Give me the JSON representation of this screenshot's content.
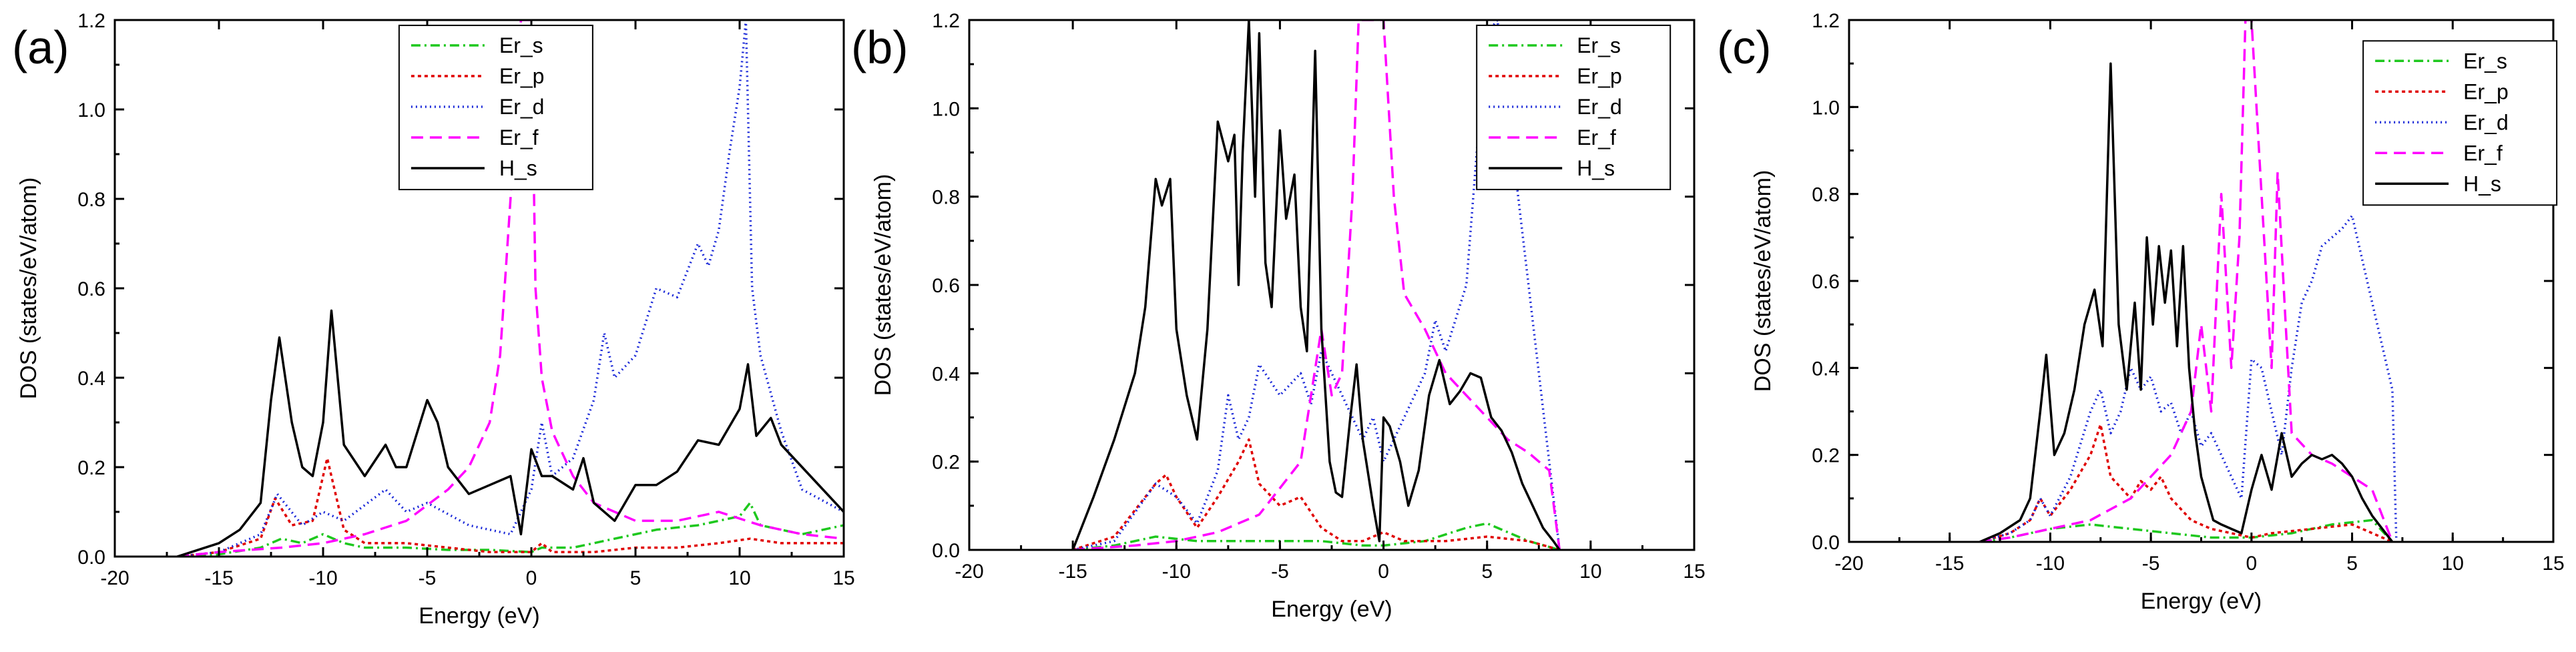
{
  "series_styles": [
    {
      "name": "Er_s",
      "color": "#1ec81e",
      "dash": "14,6,3,6"
    },
    {
      "name": "Er_p",
      "color": "#e00000",
      "dash": "5,5"
    },
    {
      "name": "Er_d",
      "color": "#1a28d8",
      "dash": "2,5"
    },
    {
      "name": "Er_f",
      "color": "#ff00ff",
      "dash": "18,10"
    },
    {
      "name": "H_s",
      "color": "#000000",
      "dash": ""
    }
  ],
  "chart_data": [
    {
      "type": "line",
      "panel_label": "(a)",
      "title": "",
      "xlabel": "Energy  (eV)",
      "ylabel": "DOS (states/eV/atom)",
      "xlim": [
        -20,
        15
      ],
      "ylim": [
        0.0,
        1.2
      ],
      "xticks": [
        -20,
        -15,
        -10,
        -5,
        0,
        5,
        10,
        15
      ],
      "yticks": [
        "0.0",
        "0.2",
        "0.4",
        "0.6",
        "0.8",
        "1.0",
        "1.2"
      ],
      "legend_position": "top-center",
      "series": [
        {
          "name": "Er_s",
          "x": [
            -17,
            -15,
            -13,
            -12,
            -11,
            -10,
            -9,
            -8,
            -6,
            -4,
            -2,
            0,
            0.5,
            2,
            4,
            6,
            8,
            10,
            10.5,
            11,
            13,
            15
          ],
          "y": [
            0,
            0.005,
            0.02,
            0.04,
            0.03,
            0.05,
            0.03,
            0.02,
            0.02,
            0.015,
            0.015,
            0.01,
            0.02,
            0.02,
            0.04,
            0.06,
            0.07,
            0.09,
            0.12,
            0.07,
            0.05,
            0.07
          ]
        },
        {
          "name": "Er_p",
          "x": [
            -17,
            -15,
            -13,
            -12.3,
            -11.5,
            -10.5,
            -9.8,
            -9,
            -8,
            -6,
            -4,
            -2,
            0,
            0.5,
            1,
            3,
            5,
            7,
            9,
            10.5,
            12,
            15
          ],
          "y": [
            0,
            0.01,
            0.04,
            0.13,
            0.07,
            0.08,
            0.22,
            0.06,
            0.03,
            0.03,
            0.02,
            0.01,
            0.01,
            0.03,
            0.01,
            0.01,
            0.02,
            0.02,
            0.03,
            0.04,
            0.03,
            0.03
          ]
        },
        {
          "name": "Er_d",
          "x": [
            -17,
            -15,
            -13,
            -12.2,
            -11,
            -10,
            -9,
            -7,
            -6,
            -5,
            -3,
            -1,
            0,
            0.5,
            1,
            2,
            3,
            3.5,
            4,
            5,
            6,
            7,
            8,
            8.5,
            9,
            9.5,
            10,
            10.3,
            10.6,
            11,
            12,
            13,
            15
          ],
          "y": [
            0,
            0.01,
            0.05,
            0.14,
            0.07,
            0.1,
            0.08,
            0.15,
            0.1,
            0.12,
            0.07,
            0.05,
            0.15,
            0.3,
            0.18,
            0.22,
            0.35,
            0.5,
            0.4,
            0.45,
            0.6,
            0.58,
            0.7,
            0.65,
            0.73,
            0.9,
            1.05,
            1.2,
            0.6,
            0.45,
            0.28,
            0.15,
            0.1
          ]
        },
        {
          "name": "Er_f",
          "x": [
            -17,
            -15,
            -12,
            -10,
            -8,
            -6,
            -4,
            -3,
            -2,
            -1.5,
            -1,
            -0.5,
            0,
            0.2,
            0.5,
            1,
            2,
            3,
            5,
            7,
            9,
            11,
            13,
            15
          ],
          "y": [
            0,
            0.01,
            0.02,
            0.03,
            0.05,
            0.08,
            0.15,
            0.2,
            0.3,
            0.45,
            0.8,
            1.2,
            1.2,
            0.6,
            0.4,
            0.28,
            0.18,
            0.12,
            0.08,
            0.08,
            0.1,
            0.07,
            0.05,
            0.04
          ]
        },
        {
          "name": "H_s",
          "x": [
            -17,
            -15,
            -14,
            -13,
            -12.5,
            -12.1,
            -11.5,
            -11,
            -10.5,
            -10,
            -9.6,
            -9,
            -8,
            -7,
            -6.5,
            -6,
            -5,
            -4.5,
            -4,
            -3,
            -2,
            -1,
            -0.5,
            0,
            0.5,
            1,
            2,
            2.5,
            3,
            4,
            5,
            6,
            7,
            8,
            9,
            10,
            10.4,
            10.8,
            11.5,
            12,
            13,
            14,
            15
          ],
          "y": [
            0,
            0.03,
            0.06,
            0.12,
            0.35,
            0.49,
            0.3,
            0.2,
            0.18,
            0.3,
            0.55,
            0.25,
            0.18,
            0.25,
            0.2,
            0.2,
            0.35,
            0.3,
            0.2,
            0.14,
            0.16,
            0.18,
            0.05,
            0.24,
            0.18,
            0.18,
            0.15,
            0.22,
            0.12,
            0.08,
            0.16,
            0.16,
            0.19,
            0.26,
            0.25,
            0.33,
            0.43,
            0.27,
            0.31,
            0.25,
            0.2,
            0.15,
            0.1
          ]
        }
      ]
    },
    {
      "type": "line",
      "panel_label": "(b)",
      "title": "",
      "xlabel": "Energy  (eV)",
      "ylabel": "DOS (states/eV/atom)",
      "xlim": [
        -20,
        15
      ],
      "ylim": [
        0.0,
        1.2
      ],
      "xticks": [
        -20,
        -15,
        -10,
        -5,
        0,
        5,
        10,
        15
      ],
      "yticks": [
        "0.0",
        "0.2",
        "0.4",
        "0.6",
        "0.8",
        "1.0",
        "1.2"
      ],
      "legend_position": "top-right",
      "series": [
        {
          "name": "Er_s",
          "x": [
            -15,
            -13,
            -11,
            -9,
            -7,
            -5,
            -3,
            -1,
            0,
            2,
            4,
            5,
            6,
            7,
            8.5
          ],
          "y": [
            0,
            0.01,
            0.03,
            0.02,
            0.02,
            0.02,
            0.02,
            0.01,
            0.01,
            0.02,
            0.05,
            0.06,
            0.04,
            0.02,
            0
          ]
        },
        {
          "name": "Er_p",
          "x": [
            -15,
            -13,
            -11,
            -10.5,
            -10,
            -9,
            -8,
            -7,
            -6.5,
            -6,
            -5,
            -4,
            -3,
            -2,
            -1,
            0,
            1,
            3,
            5,
            7,
            8.5
          ],
          "y": [
            0,
            0.03,
            0.15,
            0.17,
            0.12,
            0.05,
            0.12,
            0.2,
            0.25,
            0.15,
            0.1,
            0.12,
            0.05,
            0.02,
            0.02,
            0.04,
            0.02,
            0.02,
            0.03,
            0.02,
            0
          ]
        },
        {
          "name": "Er_d",
          "x": [
            -15,
            -13,
            -11,
            -10,
            -9,
            -8,
            -7.5,
            -7,
            -6.5,
            -6,
            -5,
            -4,
            -3.5,
            -3,
            -2,
            -1,
            -0.5,
            0,
            0.5,
            1,
            2,
            2.5,
            3,
            4,
            4.5,
            5,
            5.5,
            6,
            6.5,
            7,
            8,
            8.5
          ],
          "y": [
            0,
            0.02,
            0.15,
            0.12,
            0.06,
            0.18,
            0.35,
            0.25,
            0.3,
            0.42,
            0.35,
            0.4,
            0.33,
            0.45,
            0.35,
            0.25,
            0.3,
            0.2,
            0.25,
            0.3,
            0.4,
            0.52,
            0.45,
            0.6,
            0.9,
            1.17,
            1.2,
            1.0,
            0.8,
            0.6,
            0.2,
            0
          ]
        },
        {
          "name": "Er_f",
          "x": [
            -15,
            -12,
            -10,
            -8,
            -6,
            -4,
            -3,
            -2.5,
            -2,
            -1.5,
            -1.2,
            0,
            0.5,
            1,
            2,
            3,
            4,
            5,
            6,
            7,
            8,
            8.5
          ],
          "y": [
            0,
            0.01,
            0.02,
            0.04,
            0.08,
            0.2,
            0.5,
            0.35,
            0.4,
            0.8,
            1.2,
            1.2,
            0.8,
            0.58,
            0.5,
            0.4,
            0.35,
            0.3,
            0.25,
            0.22,
            0.18,
            0
          ]
        },
        {
          "name": "H_s",
          "x": [
            -15,
            -14,
            -13,
            -12,
            -11.5,
            -11,
            -10.7,
            -10.3,
            -10,
            -9.5,
            -9,
            -8.5,
            -8,
            -7.5,
            -7.2,
            -7,
            -6.8,
            -6.5,
            -6.2,
            -6,
            -5.7,
            -5.4,
            -5,
            -4.7,
            -4.3,
            -4,
            -3.7,
            -3.3,
            -3,
            -2.6,
            -2.3,
            -2,
            -1.6,
            -1.3,
            -1,
            -0.5,
            -0.2,
            0,
            0.3,
            0.8,
            1.2,
            1.7,
            2.2,
            2.7,
            3.2,
            3.7,
            4.2,
            4.7,
            5.2,
            5.7,
            6.2,
            6.7,
            7.2,
            7.7,
            8.2,
            8.5
          ],
          "y": [
            0,
            0.12,
            0.25,
            0.4,
            0.55,
            0.84,
            0.78,
            0.84,
            0.5,
            0.35,
            0.25,
            0.5,
            0.97,
            0.88,
            0.94,
            0.6,
            0.9,
            1.2,
            0.8,
            1.17,
            0.65,
            0.55,
            0.95,
            0.75,
            0.85,
            0.55,
            0.45,
            1.13,
            0.5,
            0.2,
            0.13,
            0.12,
            0.3,
            0.42,
            0.25,
            0.1,
            0.02,
            0.3,
            0.28,
            0.2,
            0.1,
            0.18,
            0.35,
            0.43,
            0.33,
            0.36,
            0.4,
            0.39,
            0.3,
            0.27,
            0.22,
            0.15,
            0.1,
            0.05,
            0.02,
            0
          ]
        }
      ]
    },
    {
      "type": "line",
      "panel_label": "(c)",
      "title": "",
      "xlabel": "Energy  (eV)",
      "ylabel": "DOS (states/eV/atom)",
      "xlim": [
        -20,
        15
      ],
      "ylim": [
        0.0,
        1.2
      ],
      "xticks": [
        -20,
        -15,
        -10,
        -5,
        0,
        5,
        10,
        15
      ],
      "yticks": [
        "0.0",
        "0.2",
        "0.4",
        "0.6",
        "0.8",
        "1.0",
        "1.2"
      ],
      "legend_position": "top-right",
      "series": [
        {
          "name": "Er_s",
          "x": [
            -13.5,
            -12,
            -10,
            -8,
            -6,
            -4,
            -2,
            0,
            2,
            4,
            6,
            7
          ],
          "y": [
            0,
            0.01,
            0.03,
            0.04,
            0.03,
            0.02,
            0.01,
            0.01,
            0.02,
            0.04,
            0.05,
            0
          ]
        },
        {
          "name": "Er_p",
          "x": [
            -13.5,
            -12,
            -11,
            -10.5,
            -10,
            -9,
            -8,
            -7.5,
            -7,
            -6,
            -5.5,
            -5,
            -4.5,
            -4,
            -3,
            -2,
            -1,
            0,
            1,
            3,
            5,
            7
          ],
          "y": [
            0,
            0.02,
            0.05,
            0.1,
            0.06,
            0.12,
            0.2,
            0.27,
            0.15,
            0.1,
            0.14,
            0.12,
            0.15,
            0.1,
            0.05,
            0.03,
            0.02,
            0.01,
            0.02,
            0.03,
            0.04,
            0
          ]
        },
        {
          "name": "Er_d",
          "x": [
            -13.5,
            -12,
            -11,
            -10.5,
            -10,
            -9,
            -8,
            -7.5,
            -7,
            -6.5,
            -6,
            -5.5,
            -5,
            -4.5,
            -4,
            -3.5,
            -3,
            -2.5,
            -2,
            -1.5,
            -1,
            -0.5,
            0,
            0.5,
            1,
            1.5,
            2,
            2.5,
            3,
            3.5,
            4,
            4.5,
            5,
            5.5,
            6,
            6.5,
            7,
            7.2
          ],
          "y": [
            0,
            0.02,
            0.05,
            0.1,
            0.06,
            0.15,
            0.3,
            0.35,
            0.25,
            0.3,
            0.4,
            0.35,
            0.38,
            0.3,
            0.32,
            0.25,
            0.3,
            0.22,
            0.25,
            0.2,
            0.15,
            0.1,
            0.42,
            0.4,
            0.3,
            0.2,
            0.4,
            0.55,
            0.6,
            0.68,
            0.7,
            0.72,
            0.75,
            0.65,
            0.55,
            0.45,
            0.35,
            0
          ]
        },
        {
          "name": "Er_f",
          "x": [
            -13.5,
            -12,
            -10,
            -8,
            -6,
            -4,
            -3,
            -2.5,
            -2,
            -1.5,
            -1,
            -0.6,
            -0.3,
            0,
            0.5,
            1,
            1.3,
            1.7,
            2,
            3,
            4,
            5,
            6,
            7
          ],
          "y": [
            0,
            0.01,
            0.03,
            0.05,
            0.1,
            0.2,
            0.3,
            0.5,
            0.3,
            0.8,
            0.4,
            0.7,
            1.2,
            1.2,
            0.8,
            0.4,
            0.85,
            0.5,
            0.25,
            0.2,
            0.18,
            0.15,
            0.12,
            0
          ]
        },
        {
          "name": "H_s",
          "x": [
            -13.5,
            -12.5,
            -11.5,
            -11,
            -10.5,
            -10.2,
            -9.8,
            -9.3,
            -8.8,
            -8.3,
            -7.8,
            -7.4,
            -7,
            -6.6,
            -6.2,
            -5.8,
            -5.5,
            -5.2,
            -4.9,
            -4.6,
            -4.3,
            -4,
            -3.7,
            -3.4,
            -3.1,
            -2.8,
            -2.5,
            -2.2,
            -1.9,
            -1.5,
            -1,
            -0.5,
            0,
            0.5,
            1,
            1.5,
            2,
            2.5,
            3,
            3.5,
            4,
            4.5,
            5,
            5.5,
            6,
            6.5,
            7
          ],
          "y": [
            0,
            0.02,
            0.05,
            0.1,
            0.3,
            0.43,
            0.2,
            0.25,
            0.35,
            0.5,
            0.58,
            0.45,
            1.1,
            0.5,
            0.35,
            0.55,
            0.35,
            0.7,
            0.5,
            0.68,
            0.55,
            0.67,
            0.45,
            0.68,
            0.4,
            0.25,
            0.15,
            0.1,
            0.05,
            0.04,
            0.03,
            0.02,
            0.12,
            0.2,
            0.12,
            0.25,
            0.15,
            0.18,
            0.2,
            0.19,
            0.2,
            0.18,
            0.15,
            0.1,
            0.06,
            0.03,
            0
          ]
        }
      ]
    }
  ]
}
